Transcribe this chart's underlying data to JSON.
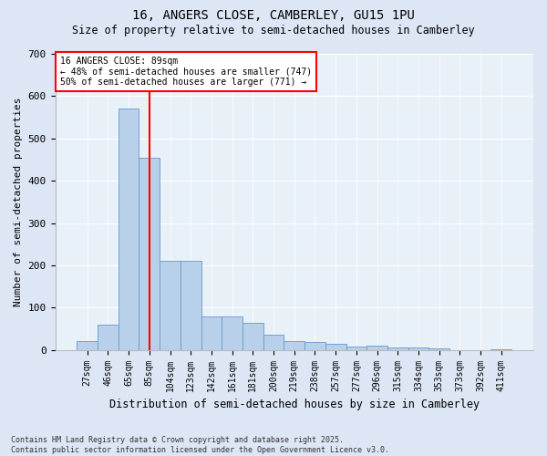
{
  "title1": "16, ANGERS CLOSE, CAMBERLEY, GU15 1PU",
  "title2": "Size of property relative to semi-detached houses in Camberley",
  "xlabel": "Distribution of semi-detached houses by size in Camberley",
  "ylabel": "Number of semi-detached properties",
  "footnote": "Contains HM Land Registry data © Crown copyright and database right 2025.\nContains public sector information licensed under the Open Government Licence v3.0.",
  "bin_labels": [
    "27sqm",
    "46sqm",
    "65sqm",
    "85sqm",
    "104sqm",
    "123sqm",
    "142sqm",
    "161sqm",
    "181sqm",
    "200sqm",
    "219sqm",
    "238sqm",
    "257sqm",
    "277sqm",
    "296sqm",
    "315sqm",
    "334sqm",
    "353sqm",
    "373sqm",
    "392sqm",
    "411sqm"
  ],
  "bar_values": [
    20,
    60,
    570,
    455,
    210,
    210,
    80,
    80,
    65,
    35,
    20,
    18,
    15,
    7,
    10,
    5,
    5,
    4,
    0,
    0,
    1
  ],
  "bar_color": "#b8d0ea",
  "bar_edge_color": "#6699cc",
  "vline_color": "red",
  "vline_pos": 3.5,
  "annotation_title": "16 ANGERS CLOSE: 89sqm",
  "annotation_line1": "← 48% of semi-detached houses are smaller (747)",
  "annotation_line2": "50% of semi-detached houses are larger (771) →",
  "annotation_box_color": "white",
  "annotation_box_edge": "red",
  "ylim": [
    0,
    700
  ],
  "yticks": [
    0,
    100,
    200,
    300,
    400,
    500,
    600,
    700
  ],
  "bg_color": "#dce6f5",
  "plot_bg_color": "#e8f0f8"
}
